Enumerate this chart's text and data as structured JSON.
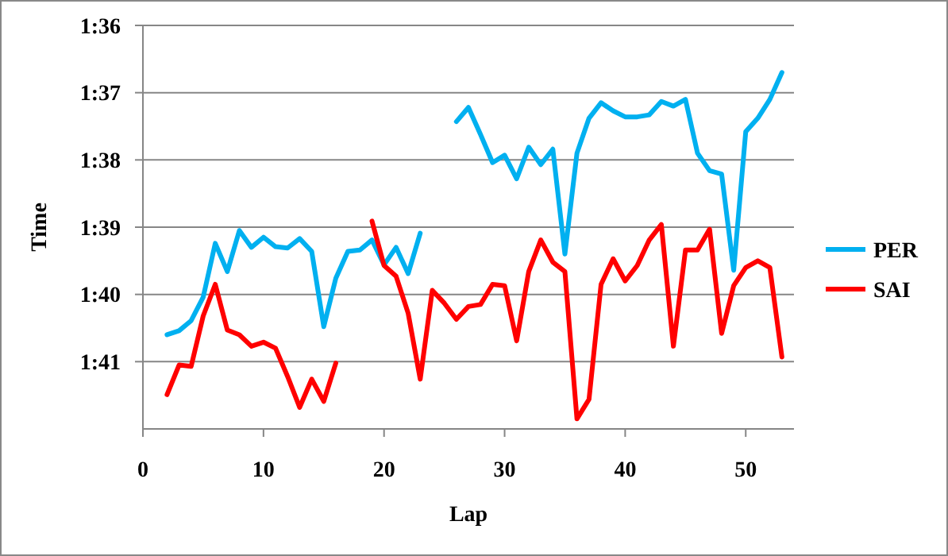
{
  "chart_data": {
    "type": "line",
    "xlabel": "Lap",
    "ylabel": "Time",
    "x": [
      2,
      3,
      4,
      5,
      6,
      7,
      8,
      9,
      10,
      11,
      12,
      13,
      14,
      15,
      16,
      17,
      18,
      19,
      20,
      21,
      22,
      23,
      24,
      25,
      26,
      27,
      28,
      29,
      30,
      31,
      32,
      33,
      34,
      35,
      36,
      37,
      38,
      39,
      40,
      41,
      42,
      43,
      44,
      45,
      46,
      47,
      48,
      49,
      50,
      51,
      52,
      53
    ],
    "series": [
      {
        "name": "PER",
        "color": "#00b0f0",
        "values": [
          100.6,
          100.54,
          100.39,
          100.04,
          99.24,
          99.66,
          99.05,
          99.3,
          99.15,
          99.29,
          99.31,
          99.17,
          99.36,
          100.48,
          99.76,
          99.36,
          99.34,
          99.19,
          99.56,
          99.3,
          99.69,
          99.09,
          null,
          null,
          97.43,
          97.22,
          97.62,
          98.04,
          97.93,
          98.28,
          97.81,
          98.07,
          97.84,
          99.4,
          97.9,
          97.38,
          97.15,
          97.27,
          97.36,
          97.36,
          97.33,
          97.13,
          97.2,
          97.1,
          97.9,
          98.16,
          98.21,
          99.64,
          97.58,
          97.38,
          97.1,
          96.7
        ]
      },
      {
        "name": "SAI",
        "color": "#ff0000",
        "values": [
          101.49,
          101.05,
          101.07,
          100.32,
          99.85,
          100.53,
          100.6,
          100.77,
          100.71,
          100.8,
          101.22,
          101.68,
          101.26,
          101.59,
          101.02,
          null,
          null,
          98.91,
          99.57,
          99.73,
          100.28,
          101.26,
          99.94,
          100.13,
          100.37,
          100.18,
          100.15,
          99.85,
          99.87,
          100.69,
          99.66,
          99.19,
          99.52,
          99.66,
          101.85,
          101.56,
          99.85,
          99.47,
          99.8,
          99.57,
          99.19,
          98.96,
          100.77,
          99.34,
          99.34,
          99.03,
          100.58,
          99.87,
          99.6,
          99.5,
          99.6,
          100.93
        ]
      }
    ],
    "xlim": [
      0,
      54
    ],
    "xticks": [
      0,
      10,
      20,
      30,
      40,
      50
    ],
    "ylim": [
      102,
      96
    ],
    "yticks": [
      {
        "value": 96,
        "label": "1:36"
      },
      {
        "value": 97,
        "label": "1:37"
      },
      {
        "value": 98,
        "label": "1:38"
      },
      {
        "value": 99,
        "label": "1:39"
      },
      {
        "value": 100,
        "label": "1:40"
      },
      {
        "value": 101,
        "label": "1:41"
      }
    ],
    "grid": "y",
    "legend": "right",
    "marker": "none",
    "line_style": "solid"
  }
}
